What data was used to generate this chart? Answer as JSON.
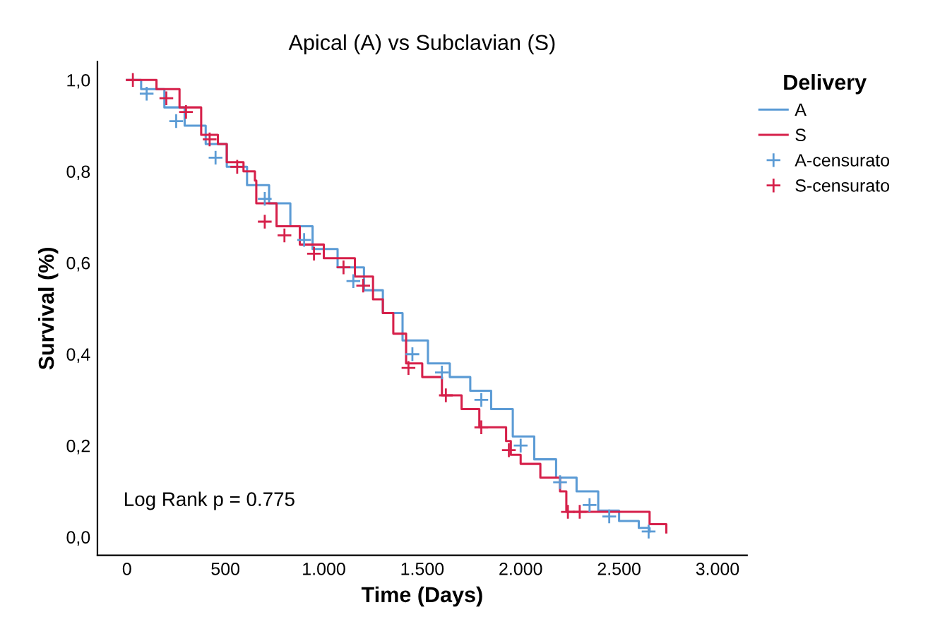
{
  "chart_data": {
    "type": "step",
    "title": "Apical (A) vs Subclavian (S)",
    "xlabel": "Time (Days)",
    "ylabel": "Survival (%)",
    "legend_title": "Delivery",
    "legend": "right",
    "grid": false,
    "xlim": [
      -150,
      3150
    ],
    "ylim": [
      -0.04,
      1.04
    ],
    "xticks": [
      0,
      500,
      {
        "value": 1000,
        "label": "1.000"
      },
      {
        "value": 1500,
        "label": "1.500"
      },
      {
        "value": 2000,
        "label": "2.000"
      },
      {
        "value": 2500,
        "label": "2.500"
      },
      {
        "value": 3000,
        "label": "3.000"
      }
    ],
    "yticks": [
      {
        "value": 0,
        "label": "0,0"
      },
      {
        "value": 0.2,
        "label": "0,2"
      },
      {
        "value": 0.4,
        "label": "0,4"
      },
      {
        "value": 0.6,
        "label": "0,6"
      },
      {
        "value": 0.8,
        "label": "0,8"
      },
      {
        "value": 1.0,
        "label": "1,0"
      }
    ],
    "annotations": [
      "Log Rank p = 0.775"
    ],
    "series": [
      {
        "name": "A",
        "color": "#5b9bd5",
        "x": [
          0,
          72,
          190,
          293,
          400,
          507,
          610,
          722,
          830,
          943,
          1070,
          1204,
          1300,
          1400,
          1529,
          1640,
          1744,
          1850,
          1960,
          2069,
          2180,
          2284,
          2394,
          2500,
          2600,
          2655
        ],
        "values": [
          1.0,
          0.98,
          0.94,
          0.9,
          0.86,
          0.81,
          0.77,
          0.73,
          0.68,
          0.63,
          0.59,
          0.54,
          0.49,
          0.43,
          0.38,
          0.35,
          0.32,
          0.28,
          0.22,
          0.17,
          0.13,
          0.1,
          0.058,
          0.035,
          0.02,
          0.012
        ]
      },
      {
        "name": "S",
        "color": "#d6204a",
        "x": [
          0,
          150,
          267,
          377,
          462,
          507,
          592,
          650,
          657,
          760,
          878,
          1000,
          1158,
          1250,
          1300,
          1353,
          1418,
          1500,
          1600,
          1700,
          1790,
          1926,
          1950,
          2000,
          2100,
          2200,
          2232,
          2655,
          2740
        ],
        "values": [
          1.0,
          0.98,
          0.94,
          0.88,
          0.86,
          0.82,
          0.8,
          0.78,
          0.73,
          0.68,
          0.64,
          0.61,
          0.57,
          0.52,
          0.49,
          0.445,
          0.38,
          0.35,
          0.31,
          0.28,
          0.24,
          0.21,
          0.18,
          0.16,
          0.13,
          0.1,
          0.055,
          0.028,
          0.01
        ]
      },
      {
        "name": "A-censurato",
        "type": "scatter",
        "marker": "cross",
        "color": "#5b9bd5",
        "x": [
          100,
          250,
          450,
          700,
          900,
          1150,
          1450,
          1600,
          1800,
          2000,
          2200,
          2350,
          2450,
          2650
        ],
        "values": [
          0.97,
          0.91,
          0.83,
          0.74,
          0.65,
          0.56,
          0.4,
          0.36,
          0.3,
          0.2,
          0.12,
          0.07,
          0.045,
          0.012
        ]
      },
      {
        "name": "S-censurato",
        "type": "scatter",
        "marker": "cross",
        "color": "#d6204a",
        "x": [
          30,
          200,
          300,
          420,
          560,
          700,
          800,
          950,
          1100,
          1200,
          1430,
          1620,
          1800,
          1940,
          2240,
          2300
        ],
        "values": [
          1.0,
          0.96,
          0.93,
          0.87,
          0.81,
          0.69,
          0.66,
          0.62,
          0.59,
          0.55,
          0.37,
          0.31,
          0.24,
          0.19,
          0.055,
          0.055
        ]
      }
    ]
  }
}
